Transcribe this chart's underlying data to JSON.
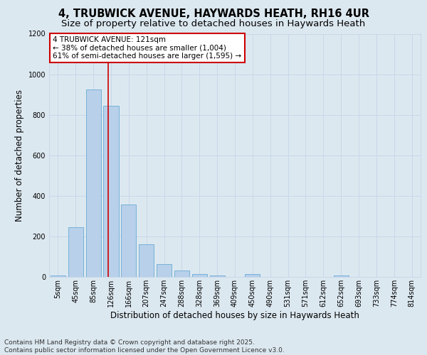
{
  "title": "4, TRUBWICK AVENUE, HAYWARDS HEATH, RH16 4UR",
  "subtitle": "Size of property relative to detached houses in Haywards Heath",
  "xlabel": "Distribution of detached houses by size in Haywards Heath",
  "ylabel": "Number of detached properties",
  "categories": [
    "5sqm",
    "45sqm",
    "85sqm",
    "126sqm",
    "166sqm",
    "207sqm",
    "247sqm",
    "288sqm",
    "328sqm",
    "369sqm",
    "409sqm",
    "450sqm",
    "490sqm",
    "531sqm",
    "571sqm",
    "612sqm",
    "652sqm",
    "693sqm",
    "733sqm",
    "774sqm",
    "814sqm"
  ],
  "values": [
    8,
    247,
    925,
    843,
    356,
    160,
    63,
    30,
    15,
    7,
    0,
    13,
    0,
    0,
    0,
    0,
    8,
    0,
    0,
    0,
    0
  ],
  "bar_color": "#b8d0ea",
  "bar_edge_color": "#6aaad4",
  "grid_color": "#c8d8ea",
  "background_color": "#dce8f0",
  "annotation_text": "4 TRUBWICK AVENUE: 121sqm\n← 38% of detached houses are smaller (1,004)\n61% of semi-detached houses are larger (1,595) →",
  "annotation_box_color": "#ffffff",
  "annotation_box_edge_color": "#cc0000",
  "vline_x_index": 2.82,
  "vline_color": "#cc0000",
  "ylim": [
    0,
    1200
  ],
  "yticks": [
    0,
    200,
    400,
    600,
    800,
    1000,
    1200
  ],
  "footnote": "Contains HM Land Registry data © Crown copyright and database right 2025.\nContains public sector information licensed under the Open Government Licence v3.0.",
  "title_fontsize": 10.5,
  "subtitle_fontsize": 9.5,
  "xlabel_fontsize": 8.5,
  "ylabel_fontsize": 8.5,
  "tick_fontsize": 7,
  "annotation_fontsize": 7.5,
  "footnote_fontsize": 6.5
}
